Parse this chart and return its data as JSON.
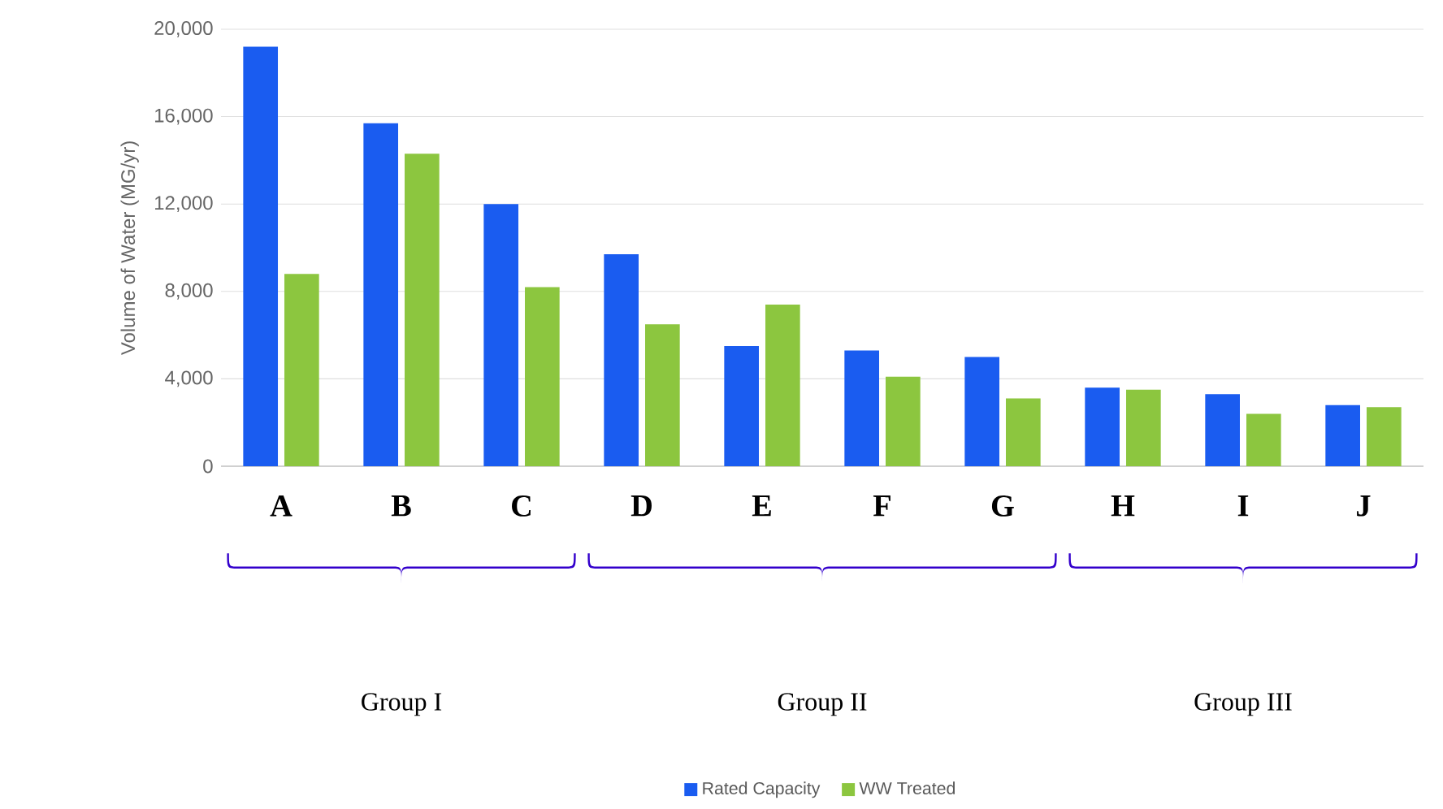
{
  "chart_data": {
    "type": "bar",
    "ylabel": "Volume of Water  (MG/yr)",
    "categories": [
      "A",
      "B",
      "C",
      "D",
      "E",
      "F",
      "G",
      "H",
      "I",
      "J"
    ],
    "series": [
      {
        "name": "Rated Capacity",
        "color": "#1a5cf0",
        "values": [
          19200,
          15700,
          12000,
          9700,
          5500,
          5300,
          5000,
          3600,
          3300,
          2800
        ]
      },
      {
        "name": "WW Treated",
        "color": "#8cc63f",
        "values": [
          8800,
          14300,
          8200,
          6500,
          7400,
          4100,
          3100,
          3500,
          2400,
          2700
        ]
      }
    ],
    "ylim": [
      0,
      20000
    ],
    "yticks": [
      {
        "value": 0,
        "label": "0"
      },
      {
        "value": 4000,
        "label": "4,000"
      },
      {
        "value": 8000,
        "label": "8,000"
      },
      {
        "value": 12000,
        "label": "12,000"
      },
      {
        "value": 16000,
        "label": "16,000"
      },
      {
        "value": 20000,
        "label": "20,000"
      }
    ],
    "grid": "y",
    "legend": "bottom",
    "annotations": [
      "Group I",
      "Group II",
      "Group III"
    ]
  }
}
